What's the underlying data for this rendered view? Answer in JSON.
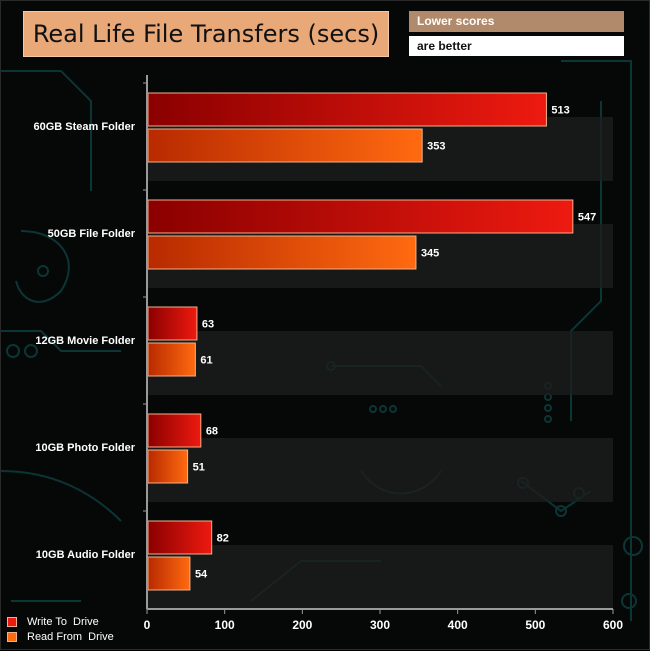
{
  "title": "Real Life File Transfers (secs)",
  "note": {
    "line1": "Lower scores",
    "line2": "are better"
  },
  "colors": {
    "write_start": "#8a0000",
    "write_end": "#ee1a10",
    "read_start": "#b82a00",
    "read_end": "#ff6a10",
    "plot_band": "#1e1e1e"
  },
  "chart_data": {
    "type": "bar",
    "orientation": "horizontal",
    "title": "Real Life File Transfers (secs)",
    "categories": [
      "60GB Steam Folder",
      "50GB File Folder",
      "12GB Movie Folder",
      "10GB Photo Folder",
      "10GB Audio Folder"
    ],
    "series": [
      {
        "name": "Write To  Drive",
        "values": [
          513,
          547,
          63,
          68,
          82
        ]
      },
      {
        "name": "Read From  Drive",
        "values": [
          353,
          345,
          61,
          51,
          54
        ]
      }
    ],
    "xlim": [
      0,
      600
    ],
    "xticks": [
      0,
      100,
      200,
      300,
      400,
      500,
      600
    ],
    "legend": "bottom-left",
    "data_labels": true
  }
}
